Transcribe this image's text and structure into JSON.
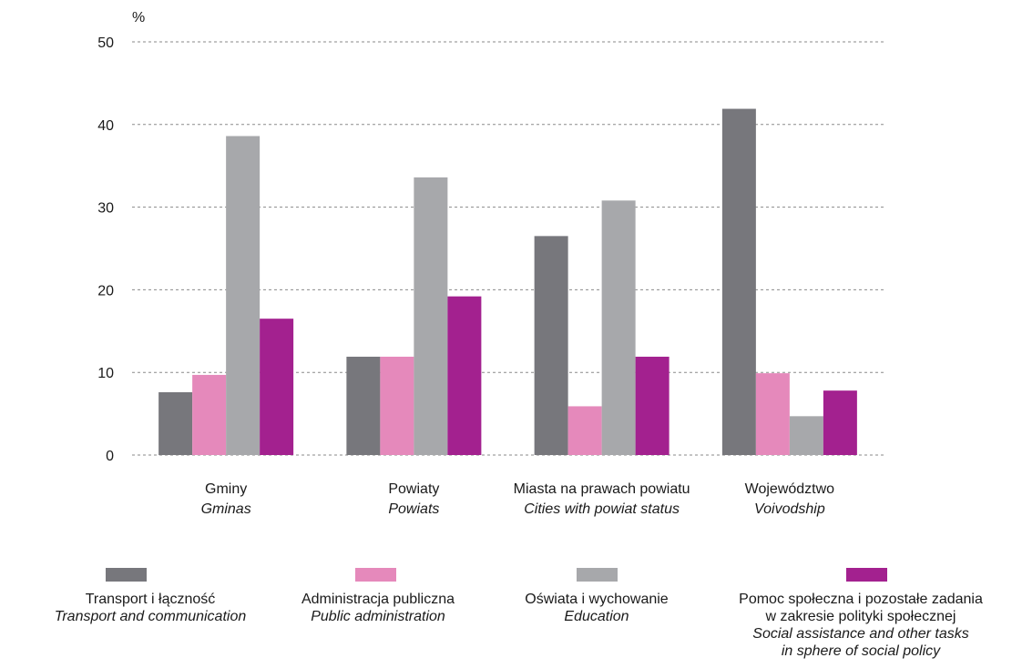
{
  "chart_data": {
    "type": "bar",
    "ylabel": "%",
    "ylim": [
      0,
      50
    ],
    "yticks": [
      0,
      10,
      20,
      30,
      40,
      50
    ],
    "grid": "horizontal-dashed",
    "categories": [
      {
        "pl": "Gminy",
        "en": "Gminas"
      },
      {
        "pl": "Powiaty",
        "en": "Powiats"
      },
      {
        "pl": "Miasta na prawach powiatu",
        "en": "Cities with powiat status"
      },
      {
        "pl": "Województwo",
        "en": "Voivodship"
      }
    ],
    "series": [
      {
        "name_pl": "Transport i łączność",
        "name_en": "Transport and communication",
        "color": "#77777c",
        "values": [
          7.6,
          11.9,
          26.5,
          41.9
        ]
      },
      {
        "name_pl": "Administracja publiczna",
        "name_en": "Public administration",
        "color": "#e589bb",
        "values": [
          9.7,
          11.9,
          5.9,
          9.9
        ]
      },
      {
        "name_pl": "Oświata i wychowanie",
        "name_en": "Education",
        "color": "#a7a8ab",
        "values": [
          38.6,
          33.6,
          30.8,
          4.7
        ]
      },
      {
        "name_pl": "Pomoc społeczna i pozostałe zadania\nw zakresie polityki społecznej",
        "name_en": "Social assistance and other tasks\nin sphere of social policy",
        "color": "#a3218f",
        "values": [
          16.5,
          19.2,
          11.9,
          7.8
        ]
      }
    ],
    "legend_position": "bottom"
  }
}
